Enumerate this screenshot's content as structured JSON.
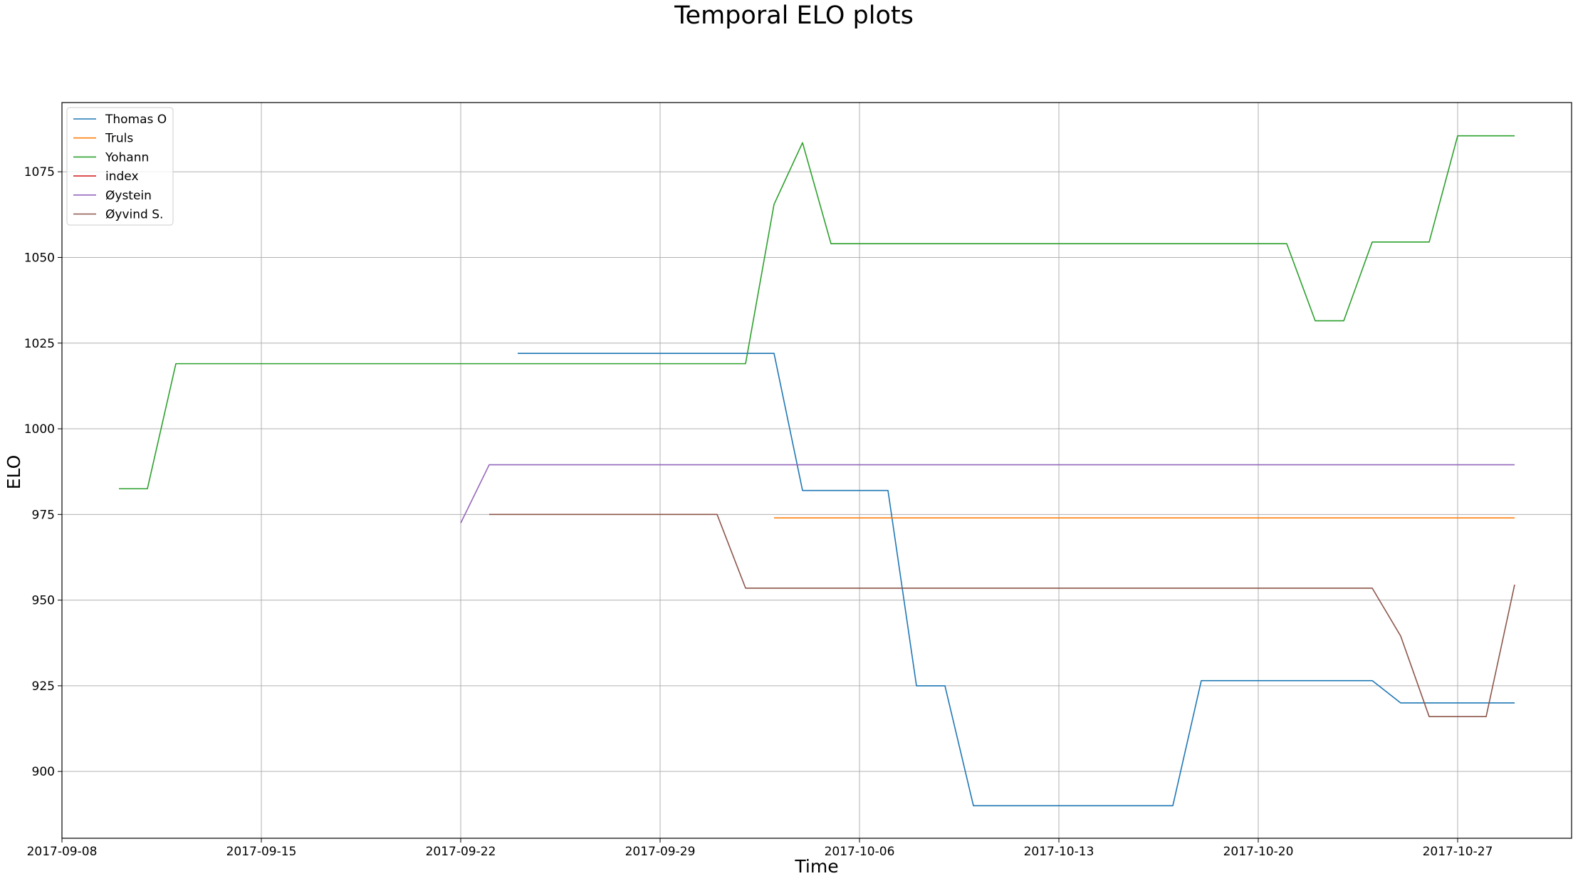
{
  "chart_data": {
    "type": "line",
    "title": "Temporal ELO plots",
    "xlabel": "Time",
    "ylabel": "ELO",
    "x_ticks": [
      "2017-09-08",
      "2017-09-15",
      "2017-09-22",
      "2017-09-29",
      "2017-10-06",
      "2017-10-13",
      "2017-10-20",
      "2017-10-27"
    ],
    "y_ticks": [
      900,
      925,
      950,
      975,
      1000,
      1025,
      1050,
      1075
    ],
    "xlim": [
      "2017-09-08",
      "2017-10-31"
    ],
    "ylim": [
      880.5,
      1095.2
    ],
    "grid": true,
    "legend_position": "top-left",
    "series": [
      {
        "name": "Thomas O",
        "color": "#1f77b4",
        "points": [
          [
            "2017-09-24",
            1022
          ],
          [
            "2017-10-03",
            1022
          ],
          [
            "2017-10-04",
            982
          ],
          [
            "2017-10-07",
            982
          ],
          [
            "2017-10-08",
            925
          ],
          [
            "2017-10-09",
            925
          ],
          [
            "2017-10-10",
            890
          ],
          [
            "2017-10-17",
            890
          ],
          [
            "2017-10-18",
            926.5
          ],
          [
            "2017-10-24",
            926.5
          ],
          [
            "2017-10-25",
            920
          ],
          [
            "2017-10-29",
            920
          ]
        ]
      },
      {
        "name": "Truls",
        "color": "#ff7f0e",
        "points": [
          [
            "2017-10-03",
            974
          ],
          [
            "2017-10-29",
            974
          ]
        ]
      },
      {
        "name": "Yohann",
        "color": "#2ca02c",
        "points": [
          [
            "2017-09-10",
            982.5
          ],
          [
            "2017-09-11",
            982.5
          ],
          [
            "2017-09-12",
            1019
          ],
          [
            "2017-10-02",
            1019
          ],
          [
            "2017-10-03",
            1065.5
          ],
          [
            "2017-10-04",
            1083.5
          ],
          [
            "2017-10-05",
            1054
          ],
          [
            "2017-10-21",
            1054
          ],
          [
            "2017-10-22",
            1031.5
          ],
          [
            "2017-10-23",
            1031.5
          ],
          [
            "2017-10-24",
            1054.5
          ],
          [
            "2017-10-26",
            1054.5
          ],
          [
            "2017-10-27",
            1085.5
          ],
          [
            "2017-10-29",
            1085.5
          ]
        ]
      },
      {
        "name": "index",
        "color": "#d62728",
        "points": []
      },
      {
        "name": "Øystein",
        "color": "#9467bd",
        "points": [
          [
            "2017-09-22",
            972.5
          ],
          [
            "2017-09-23",
            989.5
          ],
          [
            "2017-10-29",
            989.5
          ]
        ]
      },
      {
        "name": "Øyvind S.",
        "color": "#8c564b",
        "points": [
          [
            "2017-09-23",
            975
          ],
          [
            "2017-10-01",
            975
          ],
          [
            "2017-10-02",
            953.5
          ],
          [
            "2017-10-24",
            953.5
          ],
          [
            "2017-10-25",
            939.5
          ],
          [
            "2017-10-26",
            916
          ],
          [
            "2017-10-28",
            916
          ],
          [
            "2017-10-29",
            954.5
          ]
        ]
      }
    ]
  }
}
